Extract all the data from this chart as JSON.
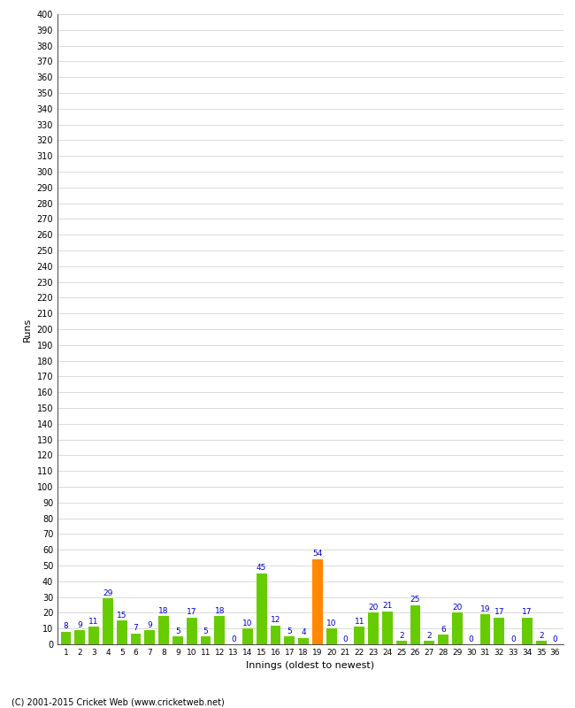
{
  "xlabel": "Innings (oldest to newest)",
  "ylabel": "Runs",
  "values": [
    8,
    9,
    11,
    29,
    15,
    7,
    9,
    18,
    5,
    17,
    5,
    18,
    0,
    10,
    45,
    12,
    5,
    4,
    54,
    10,
    0,
    11,
    20,
    21,
    2,
    25,
    2,
    6,
    20,
    0,
    19,
    17,
    0,
    17,
    2,
    0
  ],
  "innings": [
    1,
    2,
    3,
    4,
    5,
    6,
    7,
    8,
    9,
    10,
    11,
    12,
    13,
    14,
    15,
    16,
    17,
    18,
    19,
    20,
    21,
    22,
    23,
    24,
    25,
    26,
    27,
    28,
    29,
    30,
    31,
    32,
    33,
    34,
    35,
    36
  ],
  "highlight_index": 18,
  "bar_color": "#66cc00",
  "highlight_color": "#ff8800",
  "label_color": "#0000cc",
  "ylim": [
    0,
    400
  ],
  "background_color": "#ffffff",
  "grid_color": "#cccccc",
  "footer": "(C) 2001-2015 Cricket Web (www.cricketweb.net)"
}
